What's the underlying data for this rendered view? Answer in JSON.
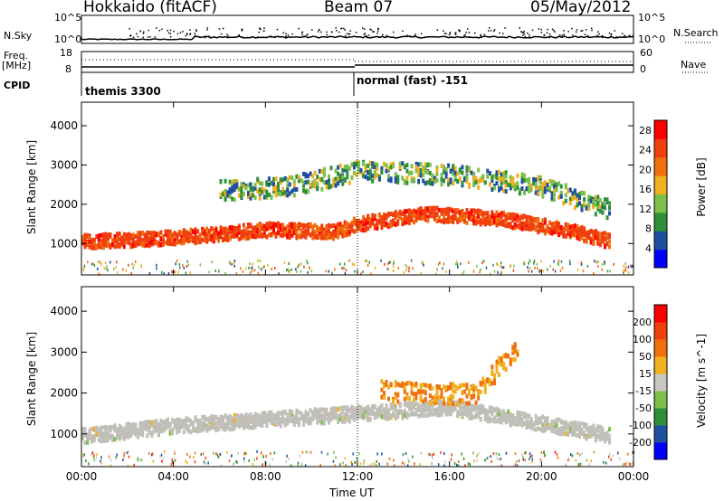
{
  "header": {
    "radar": "Hokkaido (fitACF)",
    "beam": "Beam 07",
    "date": "05/May/2012"
  },
  "side_labels": {
    "nsky": "N.Sky",
    "freq": "Freq.",
    "freq_unit": "[MHz]",
    "cpid": "CPID",
    "nsearch": "N.Search",
    "nave": "Nave",
    "nsky_ticks": [
      "10^5",
      "10^0"
    ],
    "nsearch_ticks": [
      "10^5",
      "10^0"
    ],
    "freq_ticks": [
      "18",
      "8"
    ],
    "nave_ticks": [
      "60",
      "0"
    ]
  },
  "cpid_modes": [
    {
      "label": "themis 3300",
      "start_hour": 0
    },
    {
      "label": "normal (fast) -151",
      "start_hour": 12
    }
  ],
  "colors": {
    "power_scale": [
      "#0000ff",
      "#1e4fa0",
      "#2f8f3a",
      "#7cc04a",
      "#f0b020",
      "#f07010",
      "#f04010",
      "#ff0000"
    ],
    "velocity_scale": [
      "#0000ff",
      "#1e4fa0",
      "#2f8f3a",
      "#7cc04a",
      "#c8c8c0",
      "#f0b020",
      "#f07010",
      "#f04010",
      "#ff0000"
    ],
    "ground_scatter": "#c0bfb8"
  },
  "chart_data": [
    {
      "type": "heatmap",
      "title": "",
      "xlabel": "Time UT",
      "ylabel": "Slant Range [km]",
      "x_ticks": [
        "00:00",
        "04:00",
        "08:00",
        "12:00",
        "16:00",
        "20:00",
        "00:00"
      ],
      "y_ticks": [
        1000,
        2000,
        3000,
        4000
      ],
      "xlim_hours": [
        0,
        24
      ],
      "ylim_km": [
        200,
        4600
      ],
      "colorbar": {
        "label": "Power [dB]",
        "ticks": [
          4,
          8,
          12,
          16,
          20,
          24,
          28
        ],
        "range": [
          0,
          30
        ]
      },
      "features": [
        {
          "name": "main band",
          "points": [
            [
              0,
              1100
            ],
            [
              4,
              1200
            ],
            [
              8,
              1400
            ],
            [
              11,
              1350
            ],
            [
              12,
              1550
            ],
            [
              15,
              1800
            ],
            [
              18,
              1700
            ],
            [
              21,
              1400
            ],
            [
              23,
              1100
            ]
          ],
          "power_db": 27
        },
        {
          "name": "upper scatter",
          "points": [
            [
              6,
              2400
            ],
            [
              9,
              2500
            ],
            [
              12,
              2900
            ],
            [
              16,
              2800
            ],
            [
              20,
              2500
            ],
            [
              23,
              1900
            ]
          ],
          "power_db": 18
        }
      ]
    },
    {
      "type": "heatmap",
      "title": "",
      "xlabel": "Time UT",
      "ylabel": "Slant Range [km]",
      "x_ticks": [
        "00:00",
        "04:00",
        "08:00",
        "12:00",
        "16:00",
        "20:00",
        "00:00"
      ],
      "y_ticks": [
        1000,
        2000,
        3000,
        4000
      ],
      "xlim_hours": [
        0,
        24
      ],
      "ylim_km": [
        200,
        4600
      ],
      "colorbar": {
        "label": "Velocity [m s^-1]",
        "ticks": [
          200,
          100,
          50,
          15,
          -15,
          -50,
          -100,
          -200
        ],
        "range": [
          -250,
          250
        ]
      },
      "features": [
        {
          "name": "ground scatter band",
          "points": [
            [
              0,
              1000
            ],
            [
              4,
              1250
            ],
            [
              8,
              1400
            ],
            [
              12,
              1550
            ],
            [
              16,
              1700
            ],
            [
              20,
              1300
            ],
            [
              23,
              1000
            ]
          ],
          "velocity": 0
        },
        {
          "name": "positive velocity region",
          "points": [
            [
              13,
              2100
            ],
            [
              17,
              2000
            ],
            [
              19,
              3200
            ]
          ],
          "velocity": 80
        }
      ]
    }
  ]
}
